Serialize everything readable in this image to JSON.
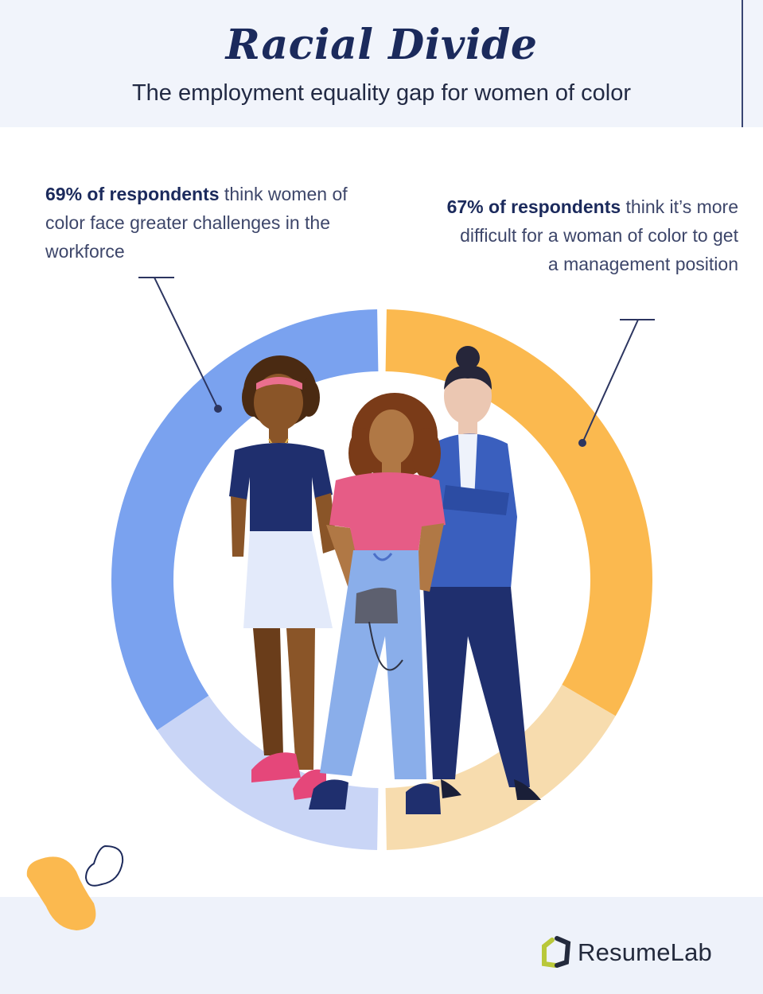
{
  "header": {
    "title": "Racial Divide",
    "subtitle": "The employment equality gap for women of color"
  },
  "notes": {
    "left": {
      "bold": "69% of respondents",
      "rest": " think women of color face greater challenges in the workforce"
    },
    "right": {
      "bold": "67% of respondents",
      "rest": " think it’s more difficult for a woman of color to get a management position"
    }
  },
  "brand": {
    "part1": "Resume",
    "part2": "Lab"
  },
  "colors": {
    "blue": "#7aa2ef",
    "blue_light": "#c9d5f6",
    "orange": "#fbb94f",
    "orange_light": "#f7dcae",
    "navy": "#1b2a5c"
  },
  "chart_data": {
    "type": "pie",
    "variant": "split-donut",
    "series": [
      {
        "value": 69,
        "remainder": 31,
        "color": "#7aa2ef",
        "remainder_color": "#c9d5f6",
        "side": "left"
      },
      {
        "value": 67,
        "remainder": 33,
        "color": "#fbb94f",
        "remainder_color": "#f7dcae",
        "side": "right"
      }
    ]
  }
}
